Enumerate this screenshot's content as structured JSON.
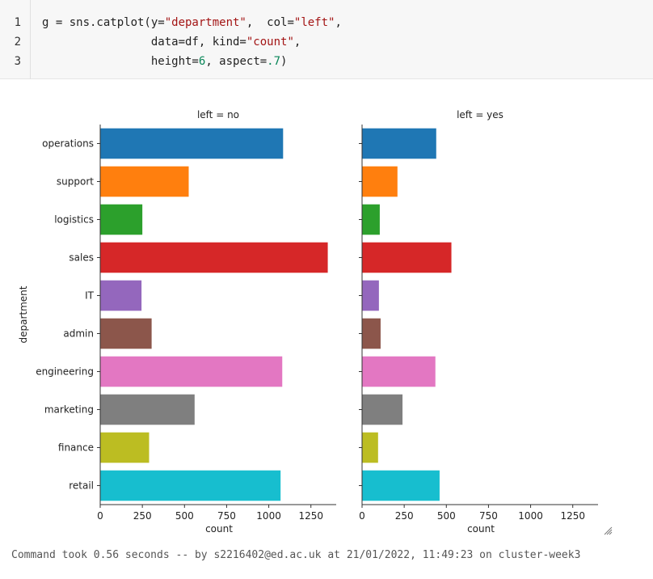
{
  "code": {
    "lines": [
      {
        "num": "1",
        "tokens": [
          {
            "t": "g = sns.catplot(y=",
            "k": "plain"
          },
          {
            "t": "\"department\"",
            "k": "str"
          },
          {
            "t": ",  col=",
            "k": "plain"
          },
          {
            "t": "\"left\"",
            "k": "str"
          },
          {
            "t": ",",
            "k": "plain"
          }
        ]
      },
      {
        "num": "2",
        "tokens": [
          {
            "t": "                data=df, kind=",
            "k": "plain"
          },
          {
            "t": "\"count\"",
            "k": "str"
          },
          {
            "t": ",",
            "k": "plain"
          }
        ]
      },
      {
        "num": "3",
        "tokens": [
          {
            "t": "                height=",
            "k": "plain"
          },
          {
            "t": "6",
            "k": "num"
          },
          {
            "t": ", aspect=",
            "k": "plain"
          },
          {
            "t": ".7",
            "k": "num"
          },
          {
            "t": ")",
            "k": "plain"
          }
        ]
      }
    ]
  },
  "chart_data": {
    "type": "bar",
    "orientation": "horizontal",
    "ylabel": "department",
    "categories": [
      "operations",
      "support",
      "logistics",
      "sales",
      "IT",
      "admin",
      "engineering",
      "marketing",
      "finance",
      "retail"
    ],
    "colors": [
      "#1f77b4",
      "#ff7f0e",
      "#2ca02c",
      "#d62728",
      "#9467bd",
      "#8c564b",
      "#e377c2",
      "#7f7f7f",
      "#bcbd22",
      "#17becf"
    ],
    "xlim": [
      0,
      1400
    ],
    "xticks": [
      "0",
      "250",
      "500",
      "750",
      "1000",
      "1250"
    ],
    "panels": [
      {
        "title": "left = no",
        "xlabel": "count",
        "values": [
          1085,
          525,
          250,
          1350,
          245,
          305,
          1080,
          560,
          290,
          1070
        ]
      },
      {
        "title": "left = yes",
        "xlabel": "count",
        "values": [
          440,
          210,
          105,
          530,
          100,
          110,
          435,
          240,
          95,
          460
        ]
      }
    ]
  },
  "status": {
    "text": "Command took 0.56 seconds -- by s2216402@ed.ac.uk at 21/01/2022, 11:49:23 on cluster-week3"
  }
}
